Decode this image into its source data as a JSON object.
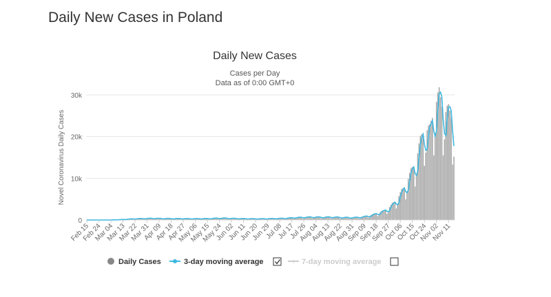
{
  "page": {
    "heading": "Daily New Cases in Poland"
  },
  "colors": {
    "bars": "#a6a6a6",
    "bar_stroke": "#ffffff",
    "line3": "#3fb8e0",
    "grid": "#e6e6e6",
    "legend_off": "#cccccc"
  },
  "chart_data": {
    "type": "bar",
    "title": "Daily New Cases",
    "subtitle_lines": [
      "Cases per Day",
      "Data as of 0:00 GMT+0"
    ],
    "ylabel": "Novel Coronavirus Daily Cases",
    "xlabel": "",
    "ylim": [
      0,
      30000
    ],
    "y_ticks": [
      0,
      10000,
      20000,
      30000
    ],
    "y_tick_labels": [
      "0",
      "10k",
      "20k",
      "30k"
    ],
    "x_start": "Feb 15",
    "x_tick_labels": [
      "Feb 15",
      "Feb 24",
      "Mar 04",
      "Mar 13",
      "Mar 22",
      "Mar 31",
      "Apr 09",
      "Apr 18",
      "Apr 27",
      "May 06",
      "May 15",
      "May 24",
      "Jun 02",
      "Jun 11",
      "Jun 20",
      "Jun 29",
      "Jul 08",
      "Jul 17",
      "Jul 26",
      "Aug 04",
      "Aug 13",
      "Aug 22",
      "Aug 31",
      "Sep 09",
      "Sep 18",
      "Sep 27",
      "Oct 06",
      "Oct 15",
      "Oct 24",
      "Nov 02",
      "Nov 11"
    ],
    "x_tick_step_days": 9,
    "num_days": 275,
    "weekly_anchors": [
      {
        "day": 0,
        "value": 0
      },
      {
        "day": 17,
        "value": 0
      },
      {
        "day": 21,
        "value": 50
      },
      {
        "day": 28,
        "value": 150
      },
      {
        "day": 35,
        "value": 300
      },
      {
        "day": 42,
        "value": 350
      },
      {
        "day": 49,
        "value": 400
      },
      {
        "day": 56,
        "value": 350
      },
      {
        "day": 63,
        "value": 330
      },
      {
        "day": 70,
        "value": 330
      },
      {
        "day": 77,
        "value": 300
      },
      {
        "day": 84,
        "value": 320
      },
      {
        "day": 91,
        "value": 330
      },
      {
        "day": 98,
        "value": 450
      },
      {
        "day": 105,
        "value": 400
      },
      {
        "day": 112,
        "value": 350
      },
      {
        "day": 119,
        "value": 300
      },
      {
        "day": 126,
        "value": 280
      },
      {
        "day": 133,
        "value": 300
      },
      {
        "day": 140,
        "value": 350
      },
      {
        "day": 147,
        "value": 400
      },
      {
        "day": 154,
        "value": 550
      },
      {
        "day": 161,
        "value": 650
      },
      {
        "day": 168,
        "value": 700
      },
      {
        "day": 175,
        "value": 650
      },
      {
        "day": 182,
        "value": 700
      },
      {
        "day": 189,
        "value": 600
      },
      {
        "day": 196,
        "value": 550
      },
      {
        "day": 203,
        "value": 650
      },
      {
        "day": 210,
        "value": 950
      },
      {
        "day": 217,
        "value": 1600
      },
      {
        "day": 224,
        "value": 2400
      },
      {
        "day": 231,
        "value": 4500
      },
      {
        "day": 238,
        "value": 8000
      },
      {
        "day": 245,
        "value": 13000
      },
      {
        "day": 252,
        "value": 21000
      },
      {
        "day": 256,
        "value": 20000
      },
      {
        "day": 259,
        "value": 25000
      },
      {
        "day": 261,
        "value": 27000
      },
      {
        "day": 263,
        "value": 27700
      },
      {
        "day": 266,
        "value": 25000
      },
      {
        "day": 269,
        "value": 24500
      },
      {
        "day": 272,
        "value": 23500
      },
      {
        "day": 274,
        "value": 19500
      }
    ],
    "weekday_factors": [
      0.62,
      0.78,
      1.05,
      1.12,
      1.15,
      1.1,
      1.05
    ],
    "series": [
      {
        "name": "Daily Cases",
        "kind": "bar",
        "visible": true
      },
      {
        "name": "3-day moving average",
        "kind": "line",
        "visible": true
      },
      {
        "name": "7-day moving average",
        "kind": "line",
        "visible": false
      }
    ],
    "legend_position": "bottom"
  }
}
